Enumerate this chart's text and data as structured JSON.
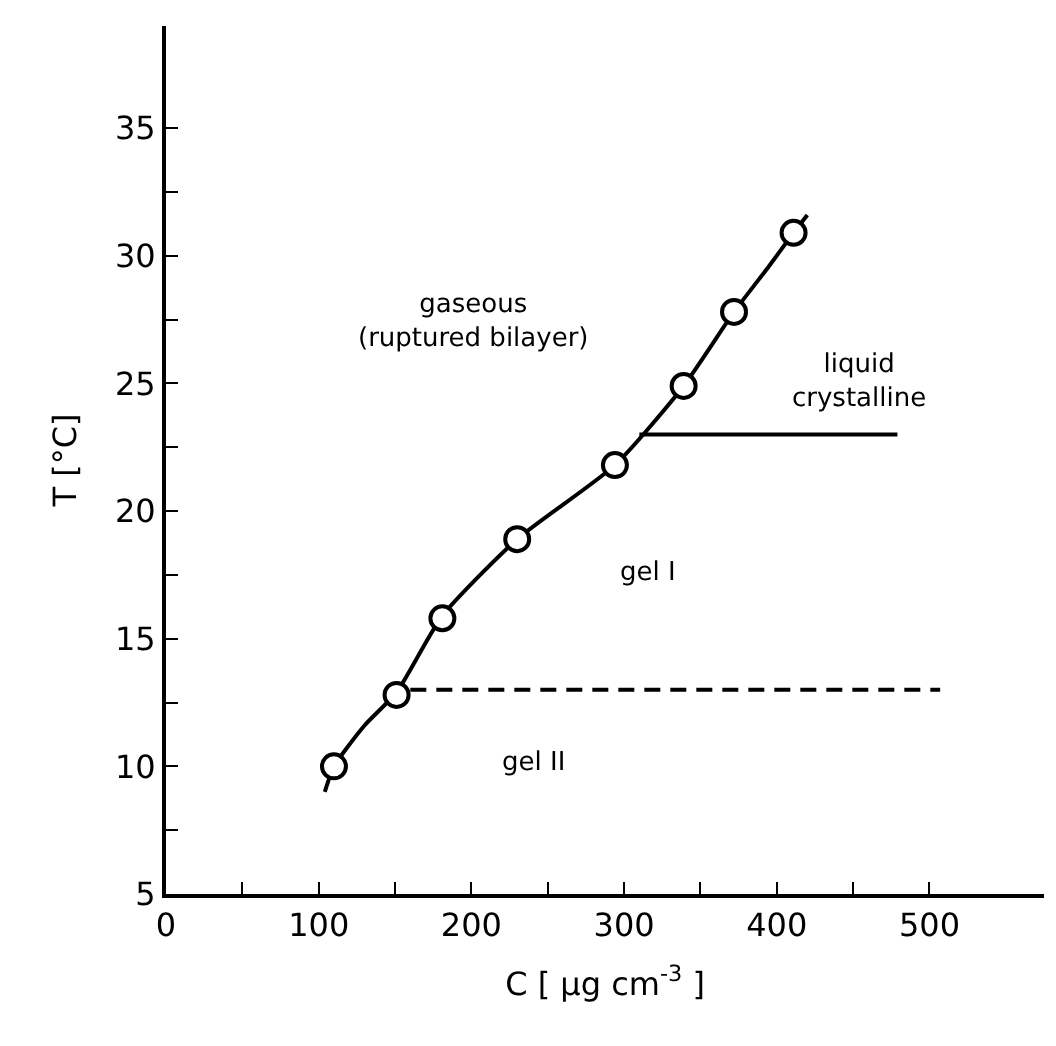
{
  "chart_data": {
    "type": "scatter",
    "xlabel": "C [ μg cm$^{-3}$ ]",
    "ylabel": "T [°C]",
    "xlim": [
      0,
      575
    ],
    "ylim": [
      5,
      39
    ],
    "xticks": [
      0,
      {
        "value": 50,
        "label": null
      },
      100,
      {
        "value": 150,
        "label": null
      },
      200,
      {
        "value": 250,
        "label": null
      },
      300,
      {
        "value": 350,
        "label": null
      },
      400,
      {
        "value": 450,
        "label": null
      },
      500
    ],
    "yticks": [
      5,
      {
        "value": 7.5,
        "label": null
      },
      10,
      {
        "value": 12.5,
        "label": null
      },
      15,
      {
        "value": 17.5,
        "label": null
      },
      20,
      {
        "value": 22.5,
        "label": null
      },
      25,
      {
        "value": 27.5,
        "label": null
      },
      30,
      {
        "value": 32.5,
        "label": null
      },
      35
    ],
    "series": [
      {
        "type": "line",
        "color": "#000000",
        "marker": "none",
        "line_style": "solid",
        "x": [
          104,
          110,
          130,
          151,
          181,
          230,
          294,
          339,
          372,
          395,
          411,
          420
        ],
        "values": [
          9.0,
          10.0,
          11.6,
          12.9,
          15.9,
          18.9,
          21.8,
          24.9,
          27.8,
          29.6,
          30.9,
          31.6
        ]
      },
      {
        "type": "line",
        "color": "#000000",
        "marker": "none",
        "line_style": "solid",
        "x": [
          310,
          479
        ],
        "values": [
          23.0,
          23.0
        ]
      },
      {
        "type": "line",
        "color": "#000000",
        "marker": "none",
        "line_style": "dashed",
        "x": [
          160,
          507
        ],
        "values": [
          13.0,
          13.0
        ]
      },
      {
        "color": "#000000",
        "marker": "circle",
        "x": [
          110,
          151,
          181,
          230,
          294,
          339,
          372,
          411
        ],
        "values": [
          10.0,
          12.8,
          15.8,
          18.9,
          21.8,
          24.9,
          27.8,
          30.9
        ]
      }
    ],
    "annotations": [
      "gaseous\n(ruptured bilayer)",
      "liquid\ncrystalline",
      "gel I",
      "gel II"
    ]
  }
}
